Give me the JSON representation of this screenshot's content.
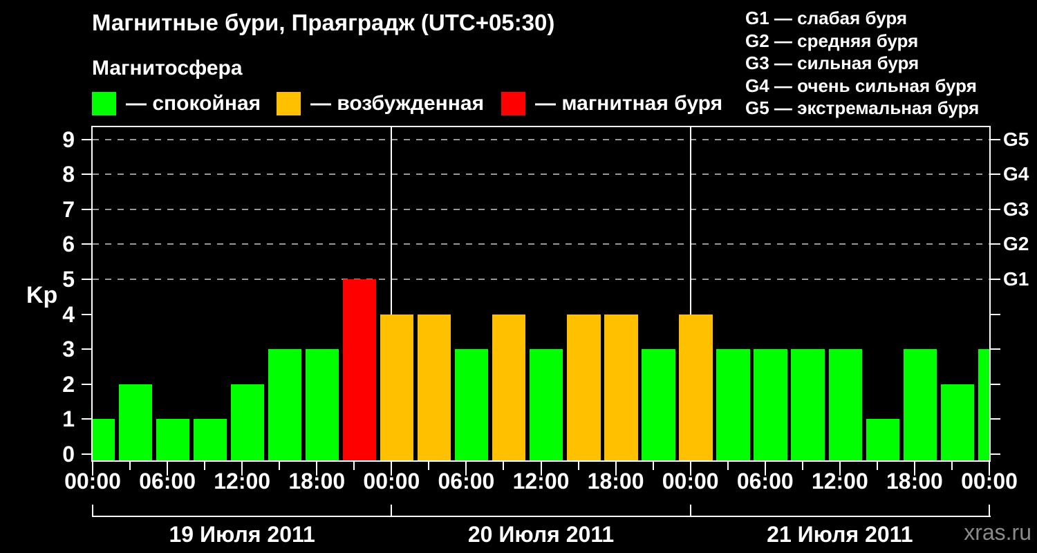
{
  "title": "Магнитные бури, Праяградж (UTC+05:30)",
  "subtitle": "Магнитосфера",
  "watermark": "xras.ru",
  "colors": {
    "background": "#000000",
    "text": "#ffffff",
    "grid": "#999999",
    "axis": "#ffffff",
    "watermark_text": "#8a8a8a",
    "quiet": "#00ff00",
    "excited": "#ffc000",
    "storm": "#ff0000"
  },
  "legend": {
    "items": [
      {
        "key": "quiet",
        "label": "— спокойная"
      },
      {
        "key": "excited",
        "label": "— возбужденная"
      },
      {
        "key": "storm",
        "label": "— магнитная буря"
      }
    ]
  },
  "storm_scale": {
    "lines": [
      "G1 — слабая буря",
      "G2 — средняя буря",
      "G3 — сильная буря",
      "G4 — очень сильная буря",
      "G5 — экстремальная буря"
    ]
  },
  "chart_data": {
    "type": "bar",
    "title": "Магнитные бури, Праяградж (UTC+05:30)",
    "ylabel": "Kp",
    "ylim": [
      0,
      9.4
    ],
    "hours_span": 72,
    "bar_interval_hours": 3,
    "grid": "dashed horizontal lines at Kp 5-9 only",
    "legend_position": "top-left",
    "y_ticks": [
      "0",
      "1",
      "2",
      "3",
      "4",
      "5",
      "6",
      "7",
      "8",
      "9"
    ],
    "right_axis_labels": [
      {
        "value": 5,
        "label": "G1"
      },
      {
        "value": 6,
        "label": "G2"
      },
      {
        "value": 7,
        "label": "G3"
      },
      {
        "value": 8,
        "label": "G4"
      },
      {
        "value": 9,
        "label": "G5"
      }
    ],
    "gridline_values": [
      5,
      6,
      7,
      8,
      9
    ],
    "x_tick_labels": [
      "00:00",
      "06:00",
      "12:00",
      "18:00",
      "00:00",
      "06:00",
      "12:00",
      "18:00",
      "00:00",
      "06:00",
      "12:00",
      "18:00",
      "00:00"
    ],
    "days": [
      {
        "date": "19 Июля 2011",
        "kp_values": [
          1,
          2,
          1,
          1,
          2,
          3,
          3,
          5
        ]
      },
      {
        "date": "20 Июля 2011",
        "kp_values": [
          4,
          4,
          3,
          4,
          3,
          4,
          4,
          3
        ]
      },
      {
        "date": "21 Июля 2011",
        "kp_values": [
          4,
          3,
          3,
          3,
          3,
          1,
          3,
          2
        ]
      }
    ],
    "next_day_partial_kp": 3,
    "color_rule": {
      "quiet_max_kp": 3,
      "excited_kp": 4,
      "storm_min_kp": 5
    }
  }
}
